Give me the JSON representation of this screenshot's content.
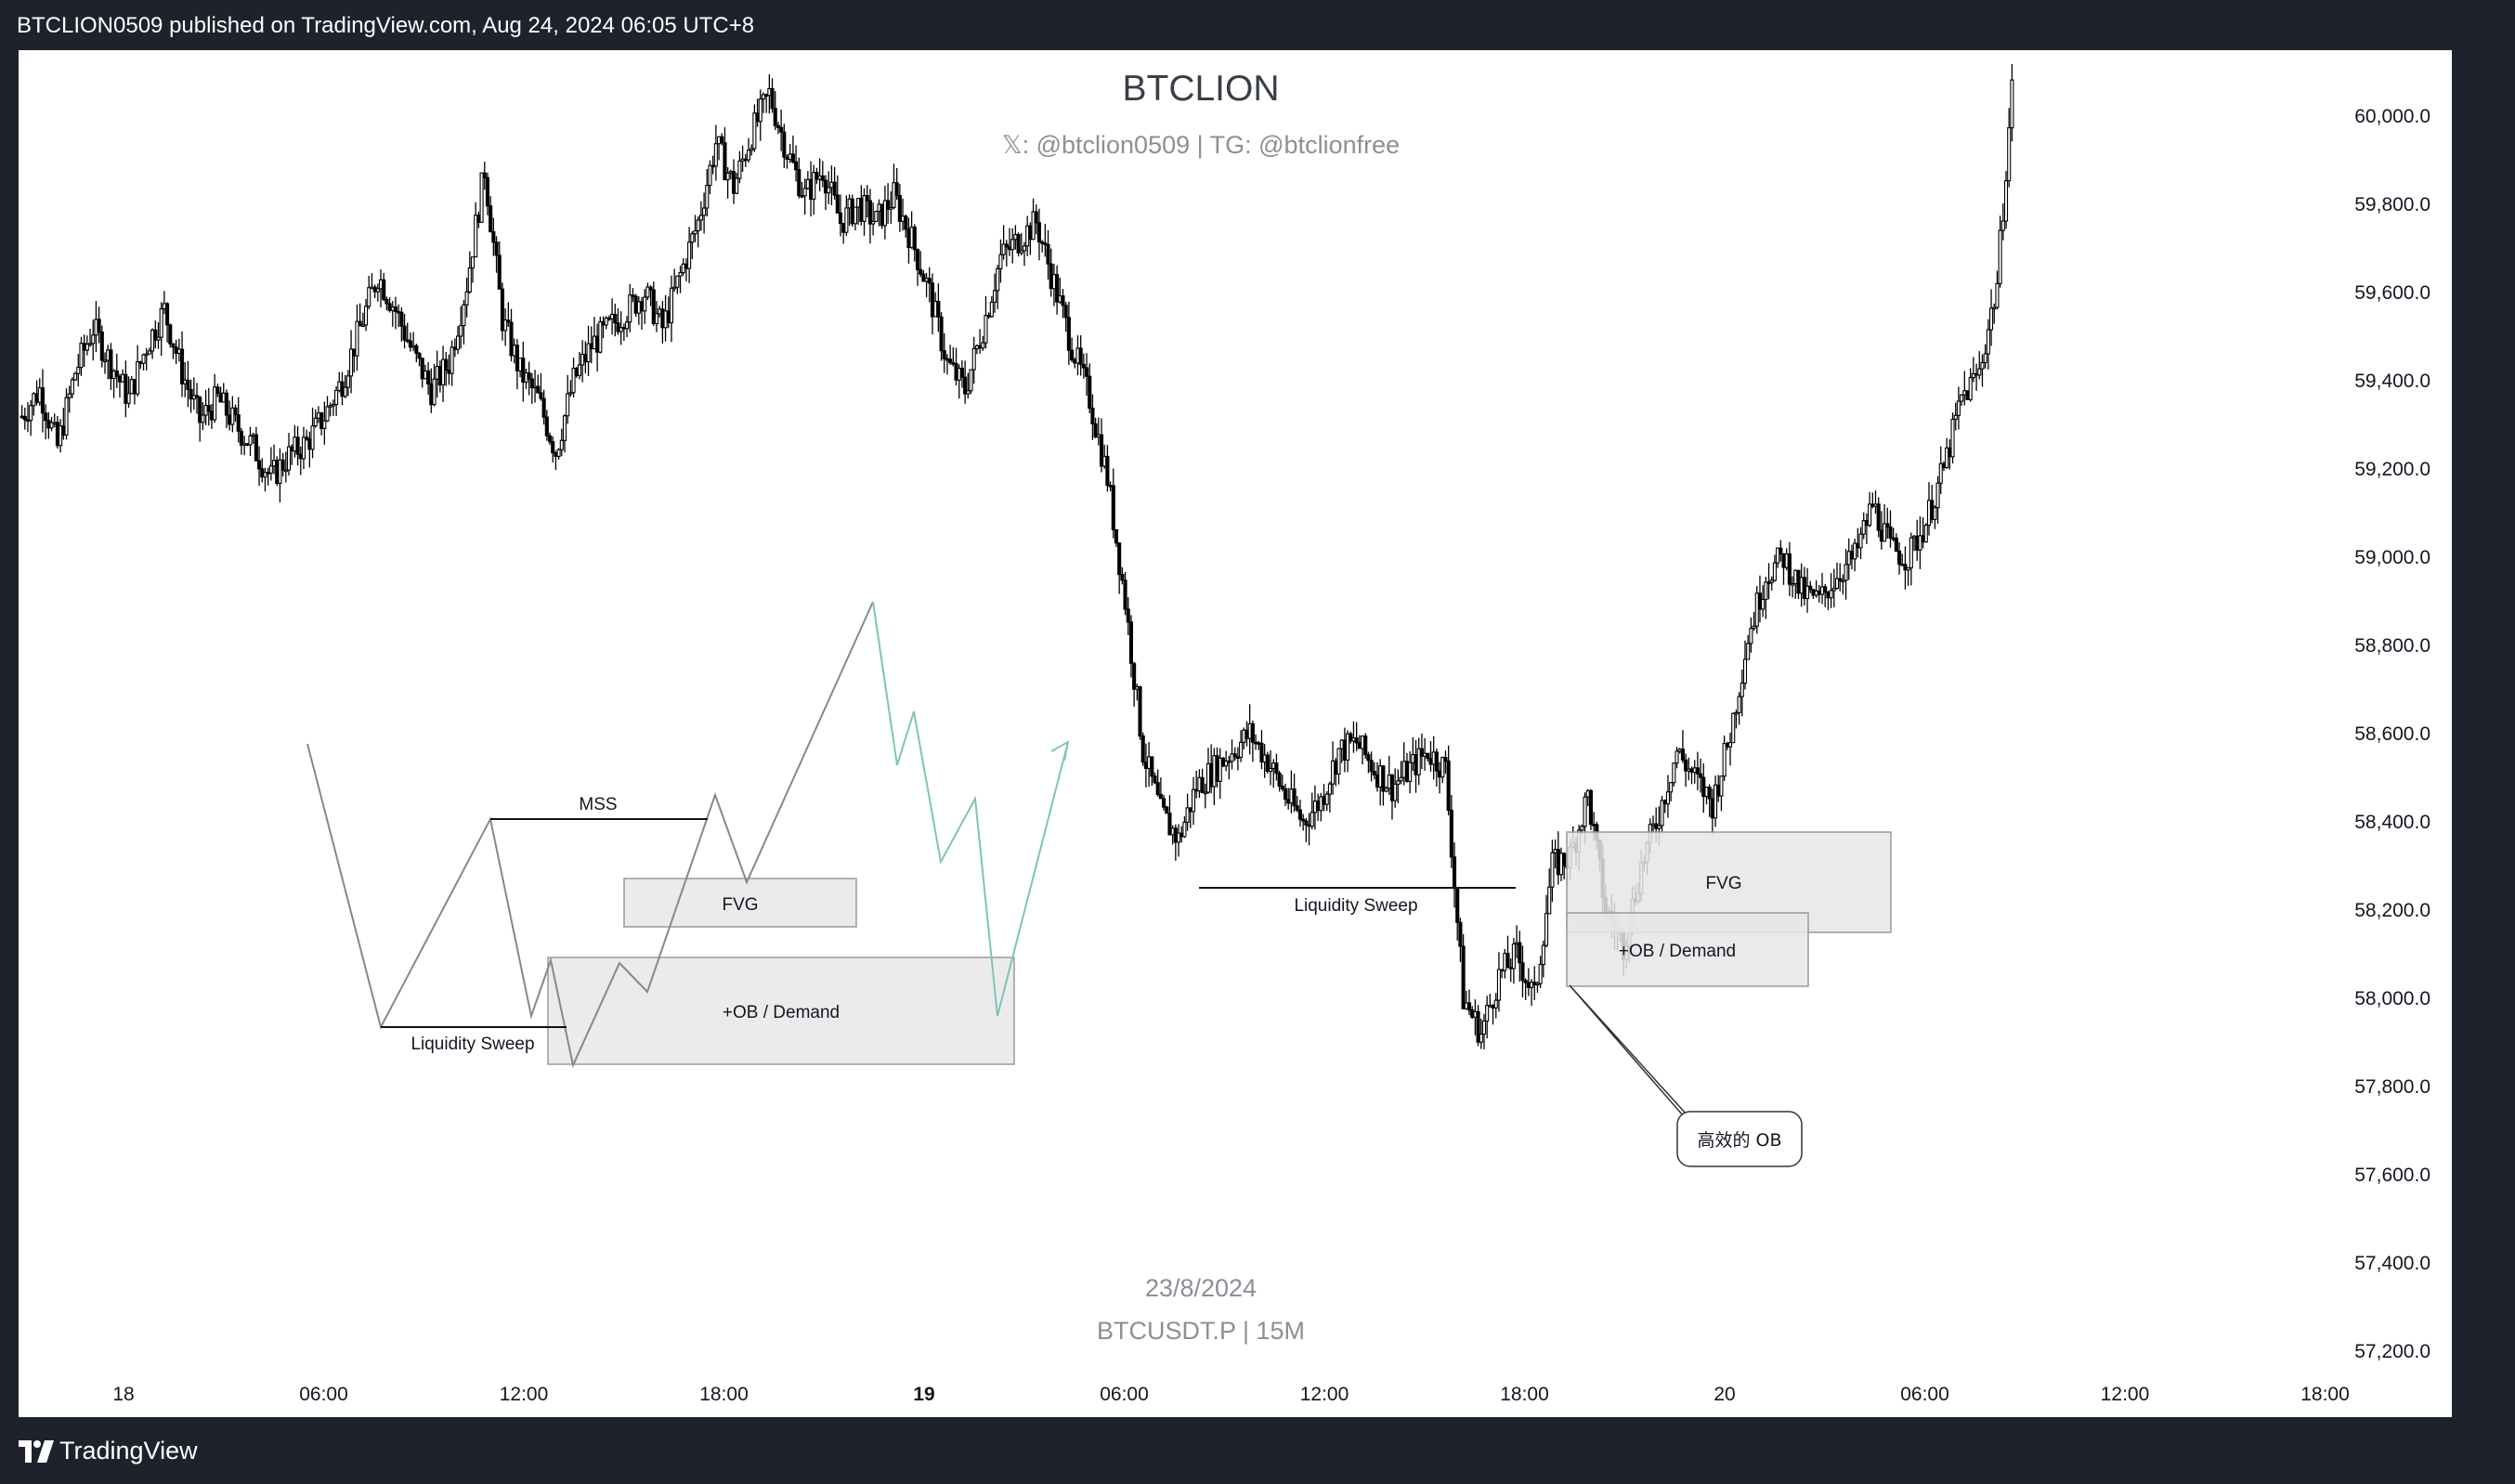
{
  "header": {
    "publish_line": "BTCLION0509 published on TradingView.com, Aug 24, 2024 06:05 UTC+8"
  },
  "footer": {
    "brand": "TradingView",
    "logo_icon": "tradingview-logo-icon"
  },
  "watermark": {
    "title": "BTCLION",
    "subtitle": "𝕏: @btclion0509 | TG: @btclionfree",
    "date": "23/8/2024",
    "symbol": "BTCUSDT.P | 15M"
  },
  "colors": {
    "frame": "#1e222d",
    "chart_bg": "#ffffff",
    "candle_up": "#ffffff",
    "candle_down": "#000000",
    "axis_text": "#131722",
    "schema_line": "#888888",
    "projection_line": "#7fc4b8",
    "zone_fill": "#ebebeb",
    "zone_border": "#9a9a9a"
  },
  "chart_data": {
    "type": "candlestick",
    "symbol": "BTCUSDT.P",
    "timeframe": "15M",
    "y_axis": {
      "side": "right",
      "ticks": [
        "60,000.0",
        "59,800.0",
        "59,600.0",
        "59,400.0",
        "59,200.0",
        "59,000.0",
        "58,800.0",
        "58,600.0",
        "58,400.0",
        "58,200.0",
        "58,000.0",
        "57,800.0",
        "57,600.0",
        "57,400.0",
        "57,200.0"
      ],
      "range": [
        57050,
        60150
      ]
    },
    "x_axis": {
      "ticks": [
        {
          "label": "18",
          "bold": false
        },
        {
          "label": "06:00",
          "bold": false
        },
        {
          "label": "12:00",
          "bold": false
        },
        {
          "label": "18:00",
          "bold": false
        },
        {
          "label": "19",
          "bold": true
        },
        {
          "label": "06:00",
          "bold": false
        },
        {
          "label": "12:00",
          "bold": false
        },
        {
          "label": "18:00",
          "bold": false
        },
        {
          "label": "20",
          "bold": false
        },
        {
          "label": "06:00",
          "bold": false
        },
        {
          "label": "12:00",
          "bold": false
        },
        {
          "label": "18:00",
          "bold": false
        }
      ]
    },
    "price_path": [
      59320,
      59380,
      59250,
      59420,
      59520,
      59440,
      59360,
      59480,
      59560,
      59420,
      59310,
      59360,
      59300,
      59250,
      59180,
      59230,
      59260,
      59320,
      59400,
      59520,
      59640,
      59560,
      59460,
      59380,
      59440,
      59620,
      59880,
      59540,
      59420,
      59360,
      59240,
      59400,
      59480,
      59520,
      59560,
      59600,
      59520,
      59640,
      59760,
      59940,
      59840,
      59960,
      60050,
      59920,
      59820,
      59880,
      59760,
      59800,
      59760,
      59820,
      59720,
      59600,
      59440,
      59380,
      59520,
      59680,
      59720,
      59760,
      59620,
      59480,
      59360,
      59180,
      58900,
      58560,
      58420,
      58360,
      58480,
      58520,
      58560,
      58600,
      58540,
      58460,
      58400,
      58450,
      58560,
      58580,
      58520,
      58480,
      58520,
      58560,
      58520,
      58000,
      57920,
      58050,
      58100,
      58000,
      58300,
      58320,
      58460,
      58200,
      58120,
      58300,
      58420,
      58560,
      58500,
      58440,
      58600,
      58820,
      58960,
      59000,
      58920,
      58900,
      58960,
      59000,
      59120,
      59020,
      59000,
      59080,
      59200,
      59360,
      59420,
      59620,
      60150
    ],
    "annotations": {
      "schema": {
        "mss_label": "MSS",
        "fvg_label": "FVG",
        "ob_label": "+OB / Demand",
        "sweep_label": "Liquidity Sweep"
      },
      "live": {
        "sweep_label": "Liquidity Sweep",
        "fvg_label": "FVG",
        "ob_label": "+OB / Demand",
        "callout_label": "高效的 OB"
      }
    }
  }
}
